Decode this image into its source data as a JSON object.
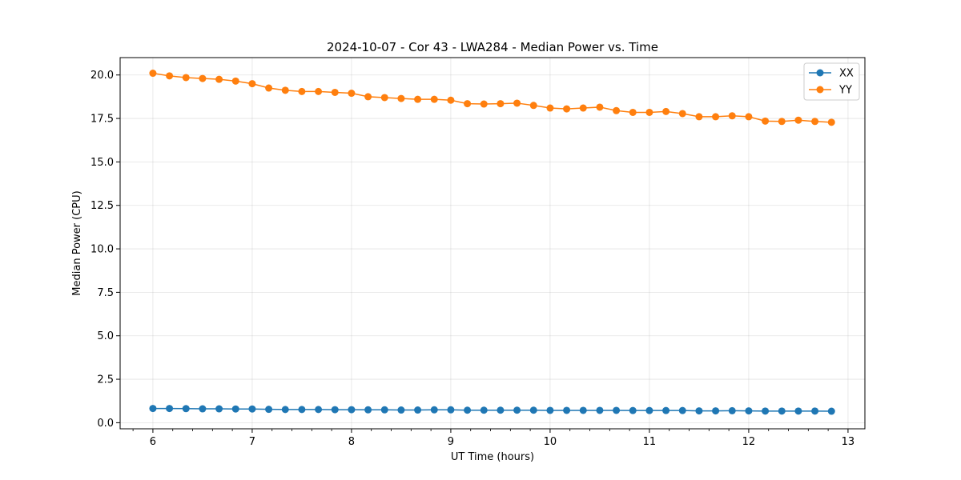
{
  "chart_data": {
    "type": "line",
    "title": "2024-10-07 - Cor 43 - LWA284 - Median Power vs. Time",
    "xlabel": "UT Time (hours)",
    "ylabel": "Median Power (CPU)",
    "xlim": [
      5.67,
      13.17
    ],
    "ylim": [
      -0.35,
      21.0
    ],
    "xticks": [
      6,
      7,
      8,
      9,
      10,
      11,
      12,
      13
    ],
    "xtick_labels": [
      "6",
      "7",
      "8",
      "9",
      "10",
      "11",
      "12",
      "13"
    ],
    "yticks": [
      0,
      2.5,
      5,
      7.5,
      10,
      12.5,
      15,
      17.5,
      20
    ],
    "ytick_labels": [
      "0.0",
      "2.5",
      "5.0",
      "7.5",
      "10.0",
      "12.5",
      "15.0",
      "17.5",
      "20.0"
    ],
    "grid": true,
    "legend_position": "top-right",
    "x": [
      6.0,
      6.1667,
      6.3333,
      6.5,
      6.6667,
      6.8333,
      7.0,
      7.1667,
      7.3333,
      7.5,
      7.6667,
      7.8333,
      8.0,
      8.1667,
      8.3333,
      8.5,
      8.6667,
      8.8333,
      9.0,
      9.1667,
      9.3333,
      9.5,
      9.6667,
      9.8333,
      10.0,
      10.1667,
      10.3333,
      10.5,
      10.6667,
      10.8333,
      11.0,
      11.1667,
      11.3333,
      11.5,
      11.6667,
      11.8333,
      12.0,
      12.1667,
      12.3333,
      12.5,
      12.6667,
      12.8333
    ],
    "series": [
      {
        "name": "XX",
        "color": "#1f77b4",
        "values": [
          0.82,
          0.82,
          0.81,
          0.8,
          0.8,
          0.79,
          0.79,
          0.77,
          0.76,
          0.76,
          0.76,
          0.75,
          0.75,
          0.74,
          0.74,
          0.73,
          0.73,
          0.74,
          0.74,
          0.72,
          0.72,
          0.72,
          0.72,
          0.72,
          0.71,
          0.71,
          0.71,
          0.71,
          0.71,
          0.7,
          0.7,
          0.7,
          0.7,
          0.68,
          0.68,
          0.69,
          0.68,
          0.67,
          0.67,
          0.67,
          0.67,
          0.66
        ]
      },
      {
        "name": "YY",
        "color": "#ff7f0e",
        "values": [
          20.1,
          19.95,
          19.85,
          19.8,
          19.75,
          19.65,
          19.5,
          19.25,
          19.12,
          19.05,
          19.05,
          19.0,
          18.95,
          18.75,
          18.7,
          18.65,
          18.6,
          18.6,
          18.55,
          18.35,
          18.33,
          18.35,
          18.38,
          18.25,
          18.1,
          18.05,
          18.1,
          18.15,
          17.95,
          17.85,
          17.85,
          17.9,
          17.78,
          17.6,
          17.6,
          17.65,
          17.6,
          17.35,
          17.33,
          17.4,
          17.33,
          17.28
        ]
      }
    ]
  }
}
